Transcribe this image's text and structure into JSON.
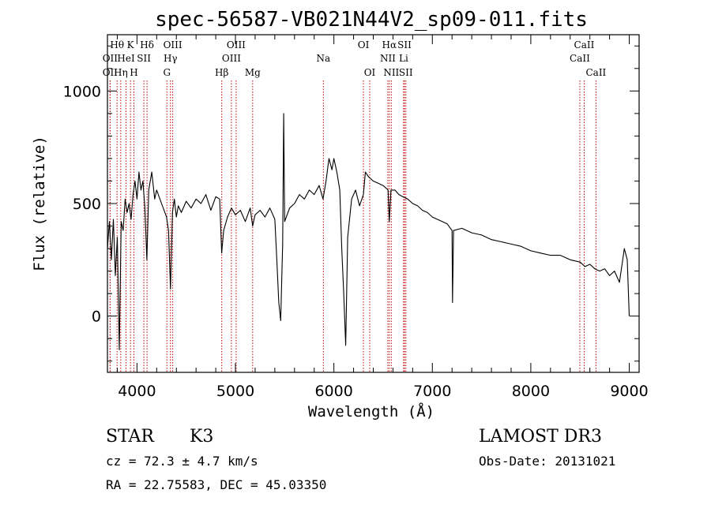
{
  "chart_data": {
    "type": "line",
    "title": "spec-56587-VB021N44V2_sp09-011.fits",
    "xlabel": "Wavelength (Å)",
    "ylabel": "Flux (relative)",
    "xlim": [
      3700,
      9100
    ],
    "ylim": [
      -250,
      1250
    ],
    "x_ticks": [
      4000,
      5000,
      6000,
      7000,
      8000,
      9000
    ],
    "y_ticks": [
      0,
      500,
      1000
    ],
    "grid": false,
    "series": [
      {
        "color": "#000000",
        "points": [
          [
            3700,
            300
          ],
          [
            3720,
            420
          ],
          [
            3740,
            250
          ],
          [
            3760,
            430
          ],
          [
            3780,
            180
          ],
          [
            3800,
            350
          ],
          [
            3820,
            -150
          ],
          [
            3840,
            420
          ],
          [
            3860,
            380
          ],
          [
            3880,
            520
          ],
          [
            3900,
            460
          ],
          [
            3920,
            500
          ],
          [
            3940,
            430
          ],
          [
            3960,
            540
          ],
          [
            3980,
            600
          ],
          [
            4000,
            520
          ],
          [
            4020,
            640
          ],
          [
            4040,
            560
          ],
          [
            4060,
            600
          ],
          [
            4080,
            480
          ],
          [
            4100,
            250
          ],
          [
            4120,
            560
          ],
          [
            4150,
            640
          ],
          [
            4180,
            520
          ],
          [
            4200,
            560
          ],
          [
            4250,
            500
          ],
          [
            4300,
            440
          ],
          [
            4320,
            380
          ],
          [
            4340,
            120
          ],
          [
            4360,
            460
          ],
          [
            4380,
            520
          ],
          [
            4400,
            440
          ],
          [
            4420,
            490
          ],
          [
            4450,
            460
          ],
          [
            4500,
            510
          ],
          [
            4550,
            480
          ],
          [
            4600,
            520
          ],
          [
            4650,
            500
          ],
          [
            4700,
            540
          ],
          [
            4750,
            470
          ],
          [
            4800,
            530
          ],
          [
            4840,
            520
          ],
          [
            4860,
            280
          ],
          [
            4880,
            380
          ],
          [
            4920,
            440
          ],
          [
            4960,
            480
          ],
          [
            5000,
            450
          ],
          [
            5050,
            470
          ],
          [
            5100,
            420
          ],
          [
            5150,
            480
          ],
          [
            5175,
            400
          ],
          [
            5200,
            450
          ],
          [
            5250,
            470
          ],
          [
            5300,
            440
          ],
          [
            5350,
            480
          ],
          [
            5400,
            430
          ],
          [
            5420,
            250
          ],
          [
            5440,
            60
          ],
          [
            5460,
            -20
          ],
          [
            5480,
            320
          ],
          [
            5490,
            900
          ],
          [
            5500,
            420
          ],
          [
            5550,
            480
          ],
          [
            5600,
            500
          ],
          [
            5650,
            540
          ],
          [
            5700,
            520
          ],
          [
            5750,
            560
          ],
          [
            5800,
            540
          ],
          [
            5850,
            580
          ],
          [
            5890,
            520
          ],
          [
            5920,
            600
          ],
          [
            5950,
            700
          ],
          [
            5980,
            650
          ],
          [
            6000,
            700
          ],
          [
            6030,
            640
          ],
          [
            6060,
            560
          ],
          [
            6080,
            300
          ],
          [
            6100,
            100
          ],
          [
            6120,
            -130
          ],
          [
            6140,
            350
          ],
          [
            6180,
            520
          ],
          [
            6220,
            560
          ],
          [
            6260,
            490
          ],
          [
            6300,
            540
          ],
          [
            6320,
            640
          ],
          [
            6350,
            620
          ],
          [
            6400,
            600
          ],
          [
            6450,
            590
          ],
          [
            6500,
            580
          ],
          [
            6550,
            560
          ],
          [
            6563,
            420
          ],
          [
            6580,
            560
          ],
          [
            6620,
            560
          ],
          [
            6660,
            540
          ],
          [
            6700,
            530
          ],
          [
            6750,
            520
          ],
          [
            6800,
            500
          ],
          [
            6850,
            490
          ],
          [
            6900,
            470
          ],
          [
            6950,
            460
          ],
          [
            7000,
            440
          ],
          [
            7050,
            430
          ],
          [
            7100,
            420
          ],
          [
            7150,
            410
          ],
          [
            7200,
            380
          ],
          [
            7205,
            60
          ],
          [
            7215,
            380
          ],
          [
            7300,
            390
          ],
          [
            7400,
            370
          ],
          [
            7500,
            360
          ],
          [
            7600,
            340
          ],
          [
            7700,
            330
          ],
          [
            7800,
            320
          ],
          [
            7900,
            310
          ],
          [
            8000,
            290
          ],
          [
            8100,
            280
          ],
          [
            8200,
            270
          ],
          [
            8300,
            270
          ],
          [
            8400,
            250
          ],
          [
            8500,
            240
          ],
          [
            8550,
            220
          ],
          [
            8600,
            230
          ],
          [
            8650,
            210
          ],
          [
            8700,
            200
          ],
          [
            8750,
            210
          ],
          [
            8800,
            180
          ],
          [
            8850,
            200
          ],
          [
            8900,
            150
          ],
          [
            8950,
            300
          ],
          [
            8980,
            250
          ],
          [
            9000,
            0
          ]
        ]
      }
    ],
    "spectral_lines": [
      {
        "label": "Hθ",
        "x": 3798,
        "row": 0,
        "anchor": "middle"
      },
      {
        "label": "OII",
        "x": 3727,
        "row": 1,
        "anchor": "middle"
      },
      {
        "label": "OII",
        "x": 3727,
        "row": 2,
        "anchor": "middle"
      },
      {
        "label": "Hη",
        "x": 3835,
        "row": 2,
        "anchor": "middle"
      },
      {
        "label": "K",
        "x": 3934,
        "row": 0,
        "anchor": "middle"
      },
      {
        "label": "HeI",
        "x": 3889,
        "row": 1,
        "anchor": "middle"
      },
      {
        "label": "H",
        "x": 3969,
        "row": 2,
        "anchor": "middle"
      },
      {
        "label": "SII",
        "x": 4070,
        "row": 1,
        "anchor": "middle"
      },
      {
        "label": "Hδ",
        "x": 4102,
        "row": 0,
        "anchor": "middle"
      },
      {
        "label": "OIII",
        "x": 4363,
        "row": 0,
        "anchor": "middle"
      },
      {
        "label": "Hγ",
        "x": 4340,
        "row": 1,
        "anchor": "middle"
      },
      {
        "label": "G",
        "x": 4304,
        "row": 2,
        "anchor": "middle"
      },
      {
        "label": "Hβ",
        "x": 4861,
        "row": 2,
        "anchor": "middle"
      },
      {
        "label": "OIII",
        "x": 5007,
        "row": 0,
        "anchor": "middle"
      },
      {
        "label": "OIII",
        "x": 4959,
        "row": 1,
        "anchor": "middle"
      },
      {
        "label": "Mg",
        "x": 5175,
        "row": 2,
        "anchor": "middle"
      },
      {
        "label": "Na",
        "x": 5893,
        "row": 1,
        "anchor": "middle"
      },
      {
        "label": "OI",
        "x": 6300,
        "row": 0,
        "anchor": "middle"
      },
      {
        "label": "OI",
        "x": 6364,
        "row": 2,
        "anchor": "middle"
      },
      {
        "label": "Hα",
        "x": 6563,
        "row": 0,
        "anchor": "middle"
      },
      {
        "label": "NII",
        "x": 6548,
        "row": 1,
        "anchor": "middle"
      },
      {
        "label": "NII",
        "x": 6583,
        "row": 2,
        "anchor": "middle"
      },
      {
        "label": "SII",
        "x": 6717,
        "row": 0,
        "anchor": "middle"
      },
      {
        "label": "Li",
        "x": 6708,
        "row": 1,
        "anchor": "middle"
      },
      {
        "label": "SII",
        "x": 6731,
        "row": 2,
        "anchor": "middle"
      },
      {
        "label": "CaII",
        "x": 8542,
        "row": 0,
        "anchor": "middle"
      },
      {
        "label": "CaII",
        "x": 8498,
        "row": 1,
        "anchor": "middle"
      },
      {
        "label": "CaII",
        "x": 8662,
        "row": 2,
        "anchor": "middle"
      }
    ]
  },
  "info": {
    "object_class": "STAR",
    "subclass": "K3",
    "survey": "LAMOST DR3",
    "redshift": "cz = 72.3 ± 4.7 km/s",
    "obs_date": "Obs-Date: 20131021",
    "coords": "RA =  22.75583, DEC =  45.03350"
  }
}
